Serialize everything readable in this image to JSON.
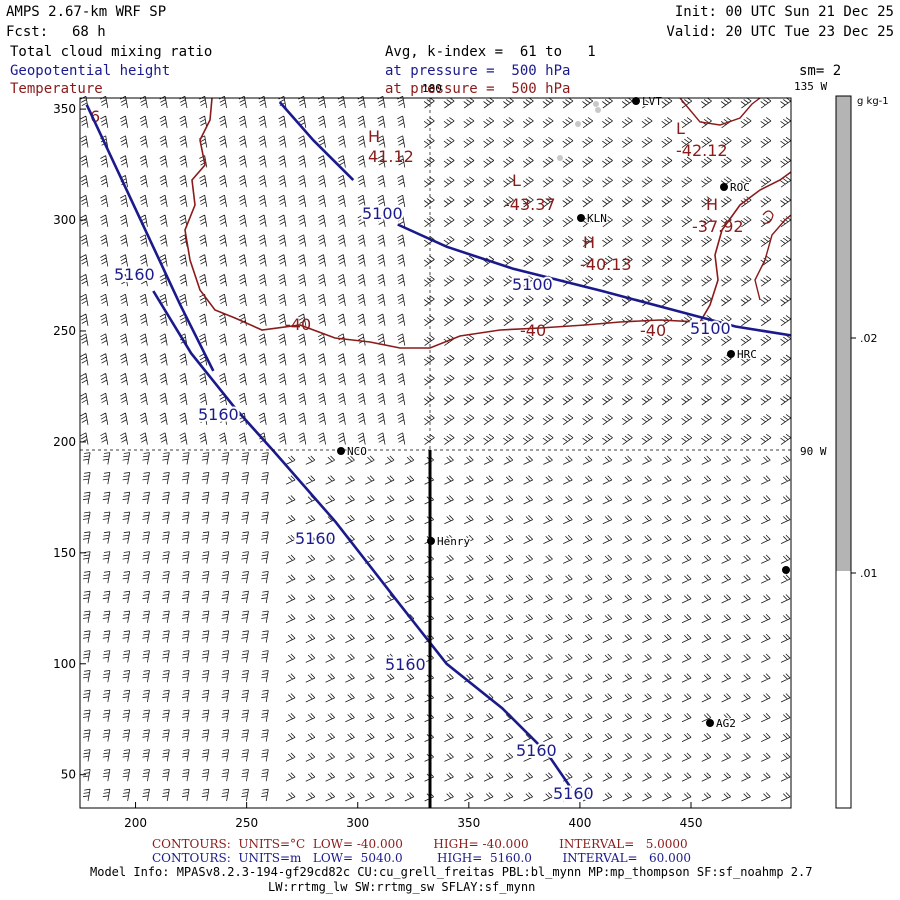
{
  "header": {
    "model": "AMPS 2.67-km WRF SP",
    "fcst_label": "Fcst:",
    "fcst_hours": "68 h",
    "init": "Init: 00 UTC Sun 21 Dec 25",
    "valid": "Valid: 20 UTC Tue 23 Dec 25",
    "field1": "Total cloud mixing ratio",
    "field2": "Geopotential height",
    "field3": "Temperature",
    "avg": "Avg, k-index =  61 to   1",
    "pressure1": "at pressure =  500 hPa",
    "pressure2": "at pressure =  500 hPa",
    "smoothing": "sm= 2"
  },
  "colors": {
    "height": "#1a1a8c",
    "temperature": "#8b1a1a",
    "colorbar_fill": "#b4b4b4"
  },
  "chart_data": {
    "type": "map-contour",
    "title": "Total cloud mixing ratio / Geopotential height / Temperature",
    "x_axis": {
      "range": [
        175,
        495
      ],
      "ticks": [
        "200",
        "250",
        "300",
        "350",
        "400",
        "450"
      ]
    },
    "y_axis": {
      "range": [
        35,
        355
      ],
      "ticks": [
        "50",
        "100",
        "150",
        "200",
        "250",
        "300",
        "350"
      ]
    },
    "height_contours": {
      "unit": "m",
      "low": 5040,
      "high": 5160,
      "interval": 60,
      "labels": [
        "5100",
        "5100",
        "5100",
        "5160",
        "5160",
        "5160",
        "5160",
        "5160",
        "5160"
      ],
      "lines": [
        {
          "value": 5100,
          "points": [
            [
              265,
              353
            ],
            [
              280,
              336
            ],
            [
              298,
              318
            ]
          ]
        },
        {
          "value": 5100,
          "points": [
            [
              318,
              298
            ],
            [
              340,
              288
            ],
            [
              370,
              278
            ],
            [
              410,
              268
            ],
            [
              440,
              260
            ],
            [
              470,
              252
            ],
            [
              495,
              248
            ]
          ]
        },
        {
          "value": 5160,
          "points": [
            [
              178,
              352
            ],
            [
              200,
              305
            ],
            [
              220,
              262
            ],
            [
              235,
              232
            ]
          ]
        },
        {
          "value": 5160,
          "points": [
            [
              208,
              268
            ],
            [
              225,
              240
            ],
            [
              245,
              215
            ],
            [
              262,
              196
            ],
            [
              290,
              164
            ],
            [
              318,
              128
            ],
            [
              340,
              100
            ],
            [
              365,
              80
            ],
            [
              385,
              60
            ],
            [
              396,
              44
            ]
          ]
        }
      ]
    },
    "temperature_contours": {
      "unit": "°C",
      "low": -40,
      "high": -40,
      "interval": 5,
      "labels": [
        "-40",
        "-40",
        "-40",
        "6"
      ],
      "extrema": [
        {
          "kind": "H",
          "value": "41.12"
        },
        {
          "kind": "L",
          "value": "-43.37"
        },
        {
          "kind": "H",
          "value": "-40.13"
        },
        {
          "kind": "L",
          "value": "-42.12"
        },
        {
          "kind": "H",
          "value": "-37.92"
        }
      ]
    },
    "stations": [
      "LVT",
      "ROC",
      "KLN",
      "HRC",
      "NCO",
      "Henry",
      "AG2"
    ],
    "map_labels": {
      "top": "180",
      "right_top": "135 W",
      "right_mid": "90 W"
    },
    "colorbar": {
      "unit": "g kg-1",
      "ticks": [
        ".02",
        ".01"
      ]
    }
  },
  "legend": {
    "temp_line": "CONTOURS:  UNITS=°C  LOW= -40.000        HIGH= -40.000        INTERVAL=   5.0000",
    "height_line": "CONTOURS:  UNITS=m   LOW=  5040.0         HIGH=  5160.0        INTERVAL=   60.000"
  },
  "footer": {
    "model_info": "Model Info: MPASv8.2.3-194-gf29cd82c CU:cu_grell_freitas PBL:bl_mynn MP:mp_thompson SF:sf_noahmp 2.7",
    "radiation": "LW:rrtmg_lw SW:rrtmg_sw SFLAY:sf_mynn"
  }
}
